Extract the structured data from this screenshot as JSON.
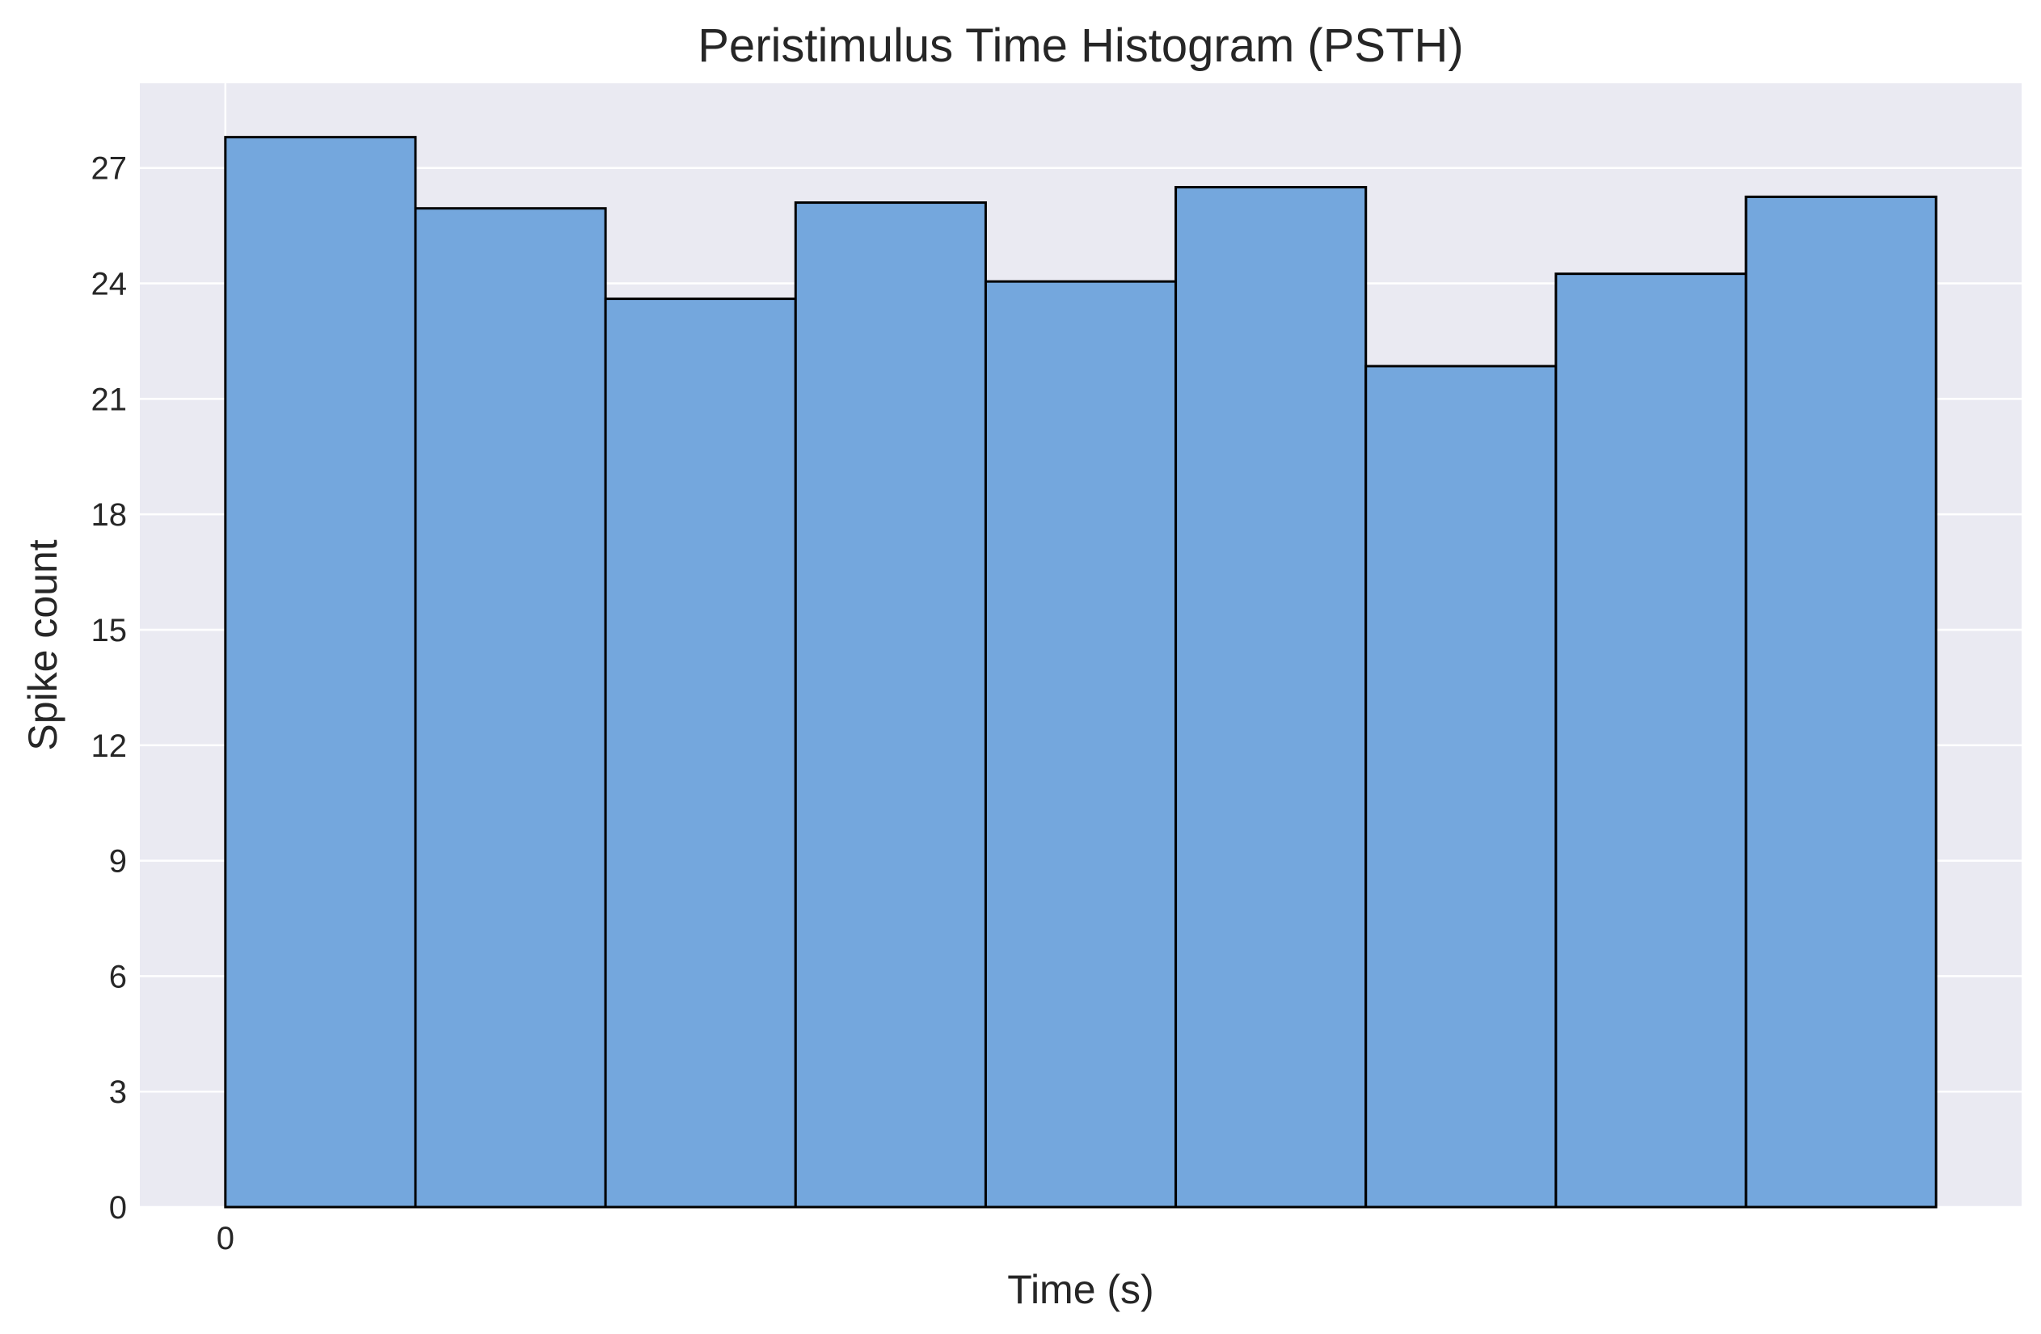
{
  "chart_data": {
    "type": "bar",
    "title": "Peristimulus Time Histogram (PSTH)",
    "xlabel": "Time (s)",
    "ylabel": "Spike count",
    "x_ticks": [
      0
    ],
    "y_ticks": [
      0,
      3,
      6,
      9,
      12,
      15,
      18,
      21,
      24,
      27
    ],
    "ylim": [
      0,
      29.2
    ],
    "grid": true,
    "bins": [
      {
        "start": 0,
        "end": 1,
        "count": 27.8
      },
      {
        "start": 1,
        "end": 2,
        "count": 25.95
      },
      {
        "start": 2,
        "end": 3,
        "count": 23.6
      },
      {
        "start": 3,
        "end": 4,
        "count": 26.1
      },
      {
        "start": 4,
        "end": 5,
        "count": 24.05
      },
      {
        "start": 5,
        "end": 6,
        "count": 26.5
      },
      {
        "start": 6,
        "end": 7,
        "count": 21.85
      },
      {
        "start": 7,
        "end": 8,
        "count": 24.25
      },
      {
        "start": 8,
        "end": 9,
        "count": 26.25
      }
    ],
    "xlim": [
      -0.45,
      9.45
    ],
    "colors": {
      "background": "#eaeaf2",
      "grid": "#ffffff",
      "bar_fill": "#74a7dd",
      "bar_edge": "#000000",
      "text": "#262626"
    }
  }
}
